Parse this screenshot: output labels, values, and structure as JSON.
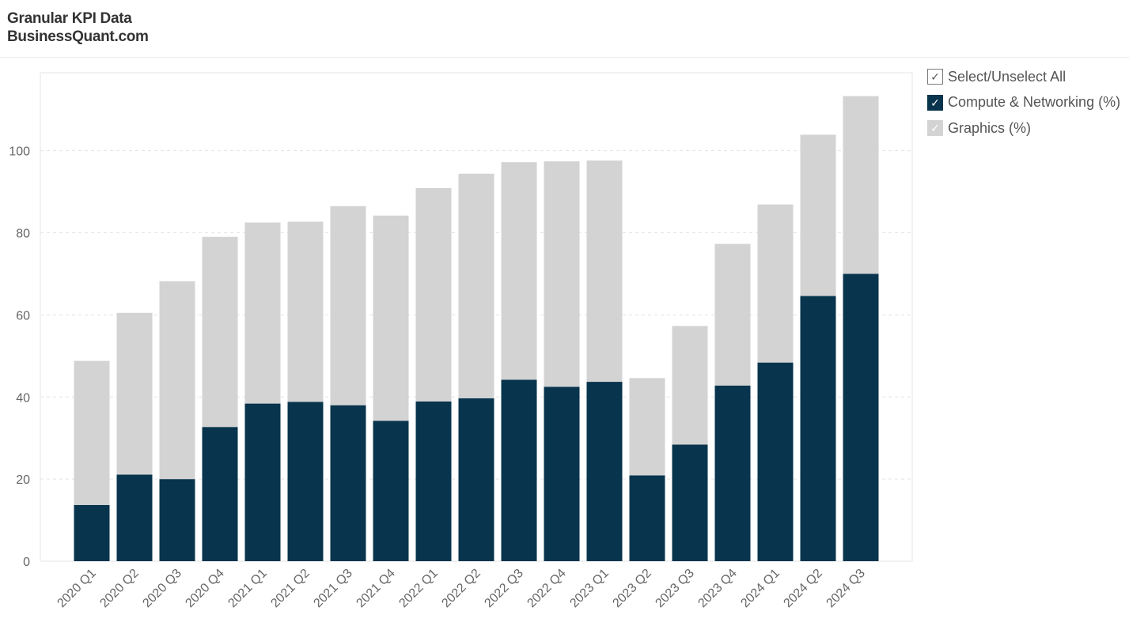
{
  "header": {
    "title": "Granular KPI Data",
    "subtitle": "BusinessQuant.com"
  },
  "legend": {
    "items": [
      {
        "label": "Select/Unselect All",
        "color": "#ffffff"
      },
      {
        "label": "Compute & Networking (%)",
        "color": "#08344d"
      },
      {
        "label": "Graphics (%)",
        "color": "#d3d3d3"
      }
    ]
  },
  "chart_data": {
    "type": "bar",
    "stacked": true,
    "categories": [
      "2020 Q1",
      "2020 Q2",
      "2020 Q3",
      "2020 Q4",
      "2021 Q1",
      "2021 Q2",
      "2021 Q3",
      "2021 Q4",
      "2022 Q1",
      "2022 Q2",
      "2022 Q3",
      "2022 Q4",
      "2023 Q1",
      "2023 Q2",
      "2023 Q3",
      "2023 Q4",
      "2024 Q1",
      "2024 Q2",
      "2024 Q3"
    ],
    "series": [
      {
        "name": "Compute & Networking (%)",
        "color": "#08344d",
        "values": [
          13.7,
          21.1,
          20.0,
          32.7,
          38.4,
          38.8,
          38.0,
          34.2,
          38.9,
          39.7,
          44.2,
          42.5,
          43.7,
          20.9,
          28.4,
          42.8,
          48.4,
          64.6,
          70.0
        ]
      },
      {
        "name": "Graphics (%)",
        "color": "#d3d3d3",
        "values": [
          35.1,
          39.4,
          48.2,
          46.3,
          44.1,
          43.9,
          48.5,
          50.0,
          52.0,
          54.7,
          53.0,
          54.9,
          53.9,
          23.7,
          28.9,
          34.5,
          38.5,
          39.3,
          43.3
        ]
      }
    ],
    "xlabel": "",
    "ylabel": "",
    "ylim": [
      0,
      119
    ],
    "yticks": [
      0,
      20,
      40,
      60,
      80,
      100
    ],
    "grid": true,
    "legend_position": "right"
  }
}
